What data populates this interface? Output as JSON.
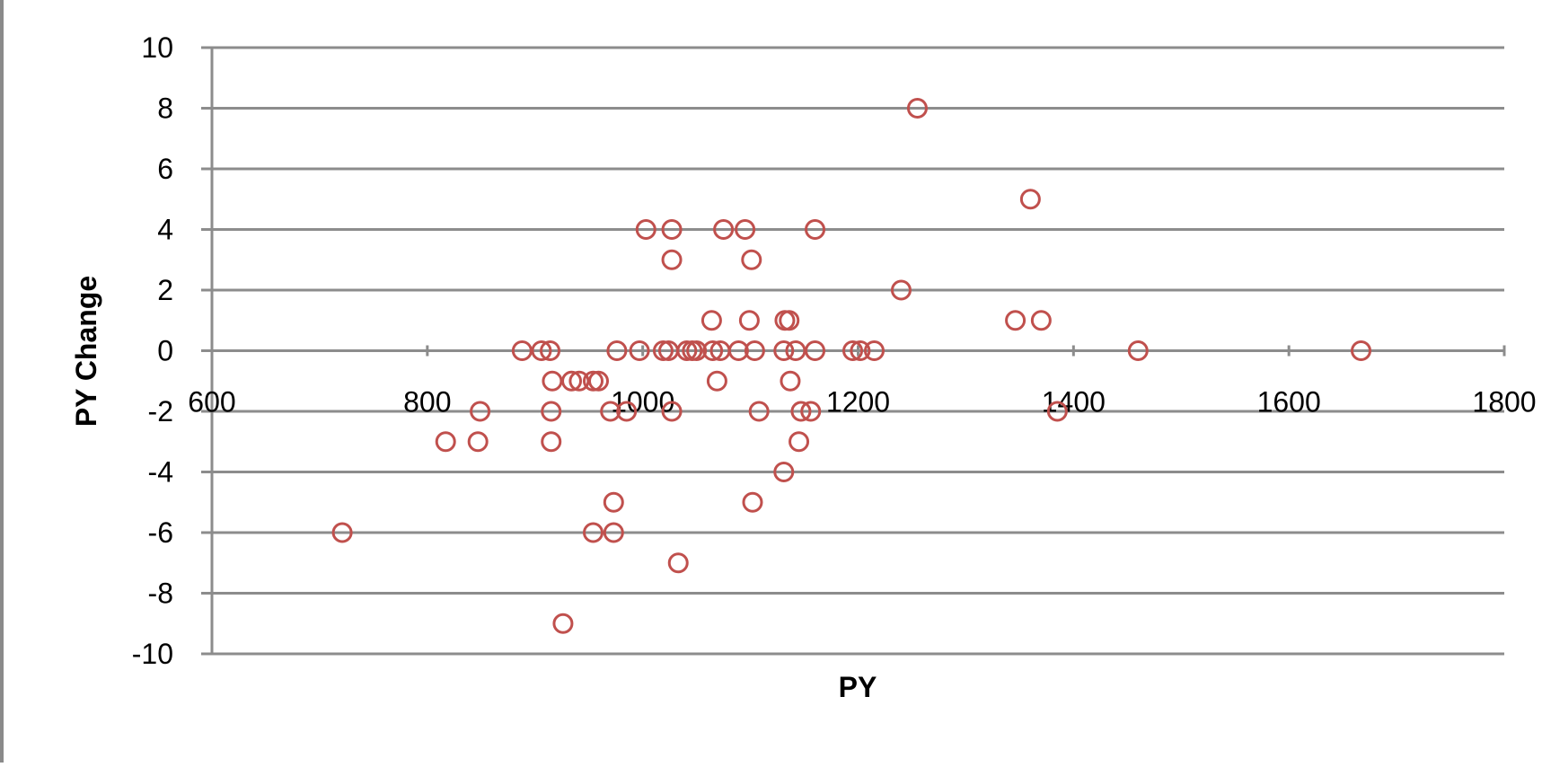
{
  "chart_data": {
    "type": "scatter",
    "title": "",
    "xlabel": "PY",
    "ylabel": "PY Change",
    "xlim": [
      600,
      1800
    ],
    "ylim": [
      -10,
      10
    ],
    "x_ticks": [
      600,
      800,
      1000,
      1200,
      1400,
      1600,
      1800
    ],
    "y_ticks": [
      10,
      8,
      6,
      4,
      2,
      0,
      -2,
      -4,
      -6,
      -8,
      -10
    ],
    "grid": "horizontal",
    "legend": "none",
    "marker": "open-circle",
    "colors": {
      "marker": "#c0504d",
      "grid": "#8c8c8c",
      "axis": "#8c8c8c"
    },
    "series": [
      {
        "x": [
          1255,
          1360,
          1003,
          1027,
          1075,
          1095,
          1160,
          1027,
          1101,
          1240,
          1064,
          1099,
          1132,
          1136,
          1346,
          1370,
          888,
          906,
          914,
          976,
          997,
          1019,
          1024,
          1041,
          1046,
          1050,
          1065,
          1072,
          1089,
          1104,
          1131,
          1142,
          1160,
          1195,
          1202,
          1215,
          1460,
          1667,
          916,
          934,
          941,
          954,
          959,
          1069,
          1137,
          849,
          915,
          970,
          985,
          1027,
          1108,
          1147,
          1156,
          1385,
          817,
          847,
          915,
          1145,
          1131,
          973,
          1102,
          954,
          973,
          1033,
          721,
          926
        ],
        "y": [
          8,
          5,
          4,
          4,
          4,
          4,
          4,
          3,
          3,
          2,
          1,
          1,
          1,
          1,
          1,
          1,
          0,
          0,
          0,
          0,
          0,
          0,
          0,
          0,
          0,
          0,
          0,
          0,
          0,
          0,
          0,
          0,
          0,
          0,
          0,
          0,
          0,
          0,
          -1,
          -1,
          -1,
          -1,
          -1,
          -1,
          -1,
          -2,
          -2,
          -2,
          -2,
          -2,
          -2,
          -2,
          -2,
          -2,
          -3,
          -3,
          -3,
          -3,
          -4,
          -5,
          -5,
          -6,
          -6,
          -7,
          -6,
          -9
        ]
      }
    ]
  }
}
